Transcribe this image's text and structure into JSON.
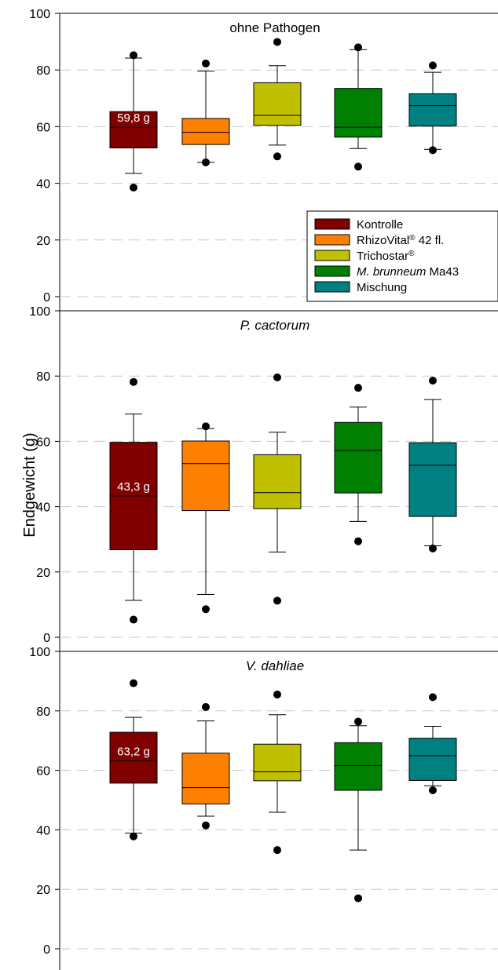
{
  "chart_data": {
    "type": "box",
    "ylabel": "Endgewicht (g)",
    "ylim": [
      0,
      100
    ],
    "yticks": [
      "0",
      "20",
      "40",
      "60",
      "80",
      "100"
    ],
    "grid": "horizontal dashed",
    "legend": {
      "placement": "bottom-right of top panel",
      "entries": [
        {
          "parts": [
            {
              "t": "Kontrolle"
            }
          ],
          "color": "#800000"
        },
        {
          "parts": [
            {
              "t": "RhizoVital"
            },
            {
              "t": "®",
              "sup": true
            },
            {
              "t": " 42 fl."
            }
          ],
          "color": "#ff8000"
        },
        {
          "parts": [
            {
              "t": "Trichostar"
            },
            {
              "t": "®",
              "sup": true
            }
          ],
          "color": "#c0c000"
        },
        {
          "parts": [
            {
              "t": "M. brunneum",
              "italic": true
            },
            {
              "t": " Ma43"
            }
          ],
          "color": "#008000"
        },
        {
          "parts": [
            {
              "t": "Mischung"
            }
          ],
          "color": "#008080"
        }
      ]
    },
    "colors": [
      "#800000",
      "#ff8000",
      "#c0c000",
      "#008000",
      "#008080"
    ],
    "panels": [
      {
        "title": "ohne Pathogen",
        "title_italic": false,
        "median_label": "59,8 g",
        "boxes": [
          {
            "q1": 52.5,
            "median": 59.8,
            "q3": 65.3,
            "whisker_low": 43.5,
            "whisker_high": 84.2,
            "outliers": [
              38.5,
              85.2
            ]
          },
          {
            "q1": 53.7,
            "median": 58.0,
            "q3": 62.9,
            "whisker_low": 47.4,
            "whisker_high": 79.6,
            "outliers": [
              47.4,
              82.3
            ]
          },
          {
            "q1": 60.5,
            "median": 64.0,
            "q3": 75.5,
            "whisker_low": 53.5,
            "whisker_high": 81.5,
            "outliers": [
              49.5,
              89.9
            ]
          },
          {
            "q1": 56.3,
            "median": 59.8,
            "q3": 73.5,
            "whisker_low": 52.3,
            "whisker_high": 87.2,
            "outliers": [
              45.9,
              88.0
            ]
          },
          {
            "q1": 60.2,
            "median": 67.4,
            "q3": 71.6,
            "whisker_low": 52.0,
            "whisker_high": 79.2,
            "outliers": [
              51.7,
              81.6
            ]
          }
        ]
      },
      {
        "title": "P. cactorum",
        "title_italic": true,
        "median_label": "43,3 g",
        "boxes": [
          {
            "q1": 26.8,
            "median": 43.3,
            "q3": 59.7,
            "whisker_low": 11.3,
            "whisker_high": 68.4,
            "outliers": [
              5.4,
              78.2
            ]
          },
          {
            "q1": 38.8,
            "median": 53.2,
            "q3": 60.1,
            "whisker_low": 13.1,
            "whisker_high": 63.9,
            "outliers": [
              8.6,
              64.6
            ]
          },
          {
            "q1": 39.4,
            "median": 44.3,
            "q3": 55.9,
            "whisker_low": 26.1,
            "whisker_high": 62.8,
            "outliers": [
              11.2,
              79.6
            ]
          },
          {
            "q1": 44.2,
            "median": 57.2,
            "q3": 65.8,
            "whisker_low": 35.5,
            "whisker_high": 70.5,
            "outliers": [
              29.4,
              76.4
            ]
          },
          {
            "q1": 37.0,
            "median": 52.7,
            "q3": 59.6,
            "whisker_low": 28.0,
            "whisker_high": 72.8,
            "outliers": [
              27.2,
              78.6
            ]
          }
        ]
      },
      {
        "title": "V. dahliae",
        "title_italic": true,
        "median_label": "63,2 g",
        "boxes": [
          {
            "q1": 55.7,
            "median": 63.2,
            "q3": 72.8,
            "whisker_low": 38.9,
            "whisker_high": 77.8,
            "outliers": [
              37.8,
              89.3
            ]
          },
          {
            "q1": 48.7,
            "median": 54.2,
            "q3": 65.8,
            "whisker_low": 44.6,
            "whisker_high": 76.6,
            "outliers": [
              41.5,
              81.3
            ]
          },
          {
            "q1": 56.5,
            "median": 59.5,
            "q3": 68.8,
            "whisker_low": 45.9,
            "whisker_high": 78.7,
            "outliers": [
              33.2,
              85.5
            ]
          },
          {
            "q1": 53.3,
            "median": 61.6,
            "q3": 69.3,
            "whisker_low": 33.2,
            "whisker_high": 75.0,
            "outliers": [
              17.0,
              76.4
            ]
          },
          {
            "q1": 56.6,
            "median": 64.9,
            "q3": 70.8,
            "whisker_low": 54.8,
            "whisker_high": 74.8,
            "outliers": [
              53.3,
              84.6
            ]
          }
        ]
      }
    ]
  }
}
